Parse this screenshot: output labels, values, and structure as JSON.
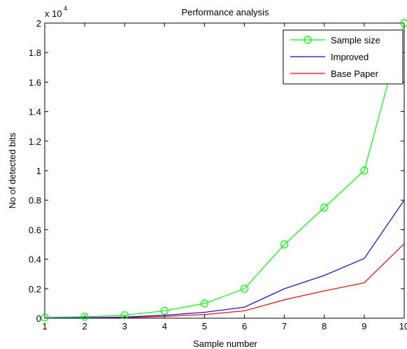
{
  "chart_data": {
    "type": "line",
    "title": "Performance analysis",
    "xlabel": "Sample number",
    "ylabel": "No of detected bits",
    "x": [
      1,
      2,
      3,
      4,
      5,
      6,
      7,
      8,
      9,
      10
    ],
    "xlim": [
      1,
      10
    ],
    "ylim": [
      0,
      20000
    ],
    "x_ticks": [
      "1",
      "2",
      "3",
      "4",
      "5",
      "6",
      "7",
      "8",
      "9",
      "10"
    ],
    "y_ticks": [
      "0",
      "0.2",
      "0.4",
      "0.6",
      "0.8",
      "1",
      "1.2",
      "1.4",
      "1.6",
      "1.8",
      "2"
    ],
    "y_tick_values": [
      0,
      2000,
      4000,
      6000,
      8000,
      10000,
      12000,
      14000,
      16000,
      18000,
      20000
    ],
    "y_multiplier_label": "x 10",
    "y_multiplier_exponent": "4",
    "grid": false,
    "legend_position": "top-right",
    "series": [
      {
        "name": "Sample size",
        "color": "#00ff00",
        "marker": "circle",
        "values": [
          50,
          100,
          200,
          500,
          1000,
          2000,
          5000,
          7500,
          10000,
          20000
        ]
      },
      {
        "name": "Improved",
        "color": "#0000ff",
        "marker": "none",
        "values": [
          20,
          40,
          80,
          200,
          400,
          750,
          2000,
          2900,
          4050,
          8000
        ]
      },
      {
        "name": "Base Paper",
        "color": "#ff0000",
        "marker": "none",
        "values": [
          10,
          20,
          40,
          120,
          250,
          500,
          1250,
          1850,
          2400,
          5050
        ]
      }
    ]
  }
}
